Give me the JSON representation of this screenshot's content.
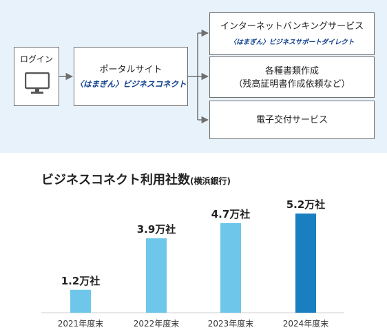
{
  "diagram": {
    "login": {
      "label": "ログイン",
      "icon": "monitor-icon"
    },
    "portal": {
      "line1": "ポータルサイト",
      "brand": "〈はまぎん〉ビジネスコネクト"
    },
    "services": [
      {
        "line1": "インターネットバンキングサービス",
        "brand": "〈はまぎん〉ビジネスサポートダイレクト"
      },
      {
        "line1": "各種書類作成",
        "line2": "（残高証明書作成依頼など）"
      },
      {
        "line1": "電子交付サービス"
      }
    ]
  },
  "chart_title": {
    "main": "ビジネスコネクト利用社数",
    "sub": "(横浜銀行)"
  },
  "colors": {
    "panel_bg": "#e8f2fb",
    "bar_light": "#6ec6ea",
    "bar_dark": "#1a7fc1",
    "brand": "#0d3c8c"
  },
  "chart_data": {
    "type": "bar",
    "categories": [
      "2021年度末",
      "2022年度末",
      "2023年度末",
      "2024年度末"
    ],
    "values": [
      1.2,
      3.9,
      4.7,
      5.2
    ],
    "value_labels": [
      "1.2万社",
      "3.9万社",
      "4.7万社",
      "5.2万社"
    ],
    "highlight_index": 3,
    "ylim": [
      0,
      5.2
    ],
    "grid": false,
    "legend": "none"
  }
}
